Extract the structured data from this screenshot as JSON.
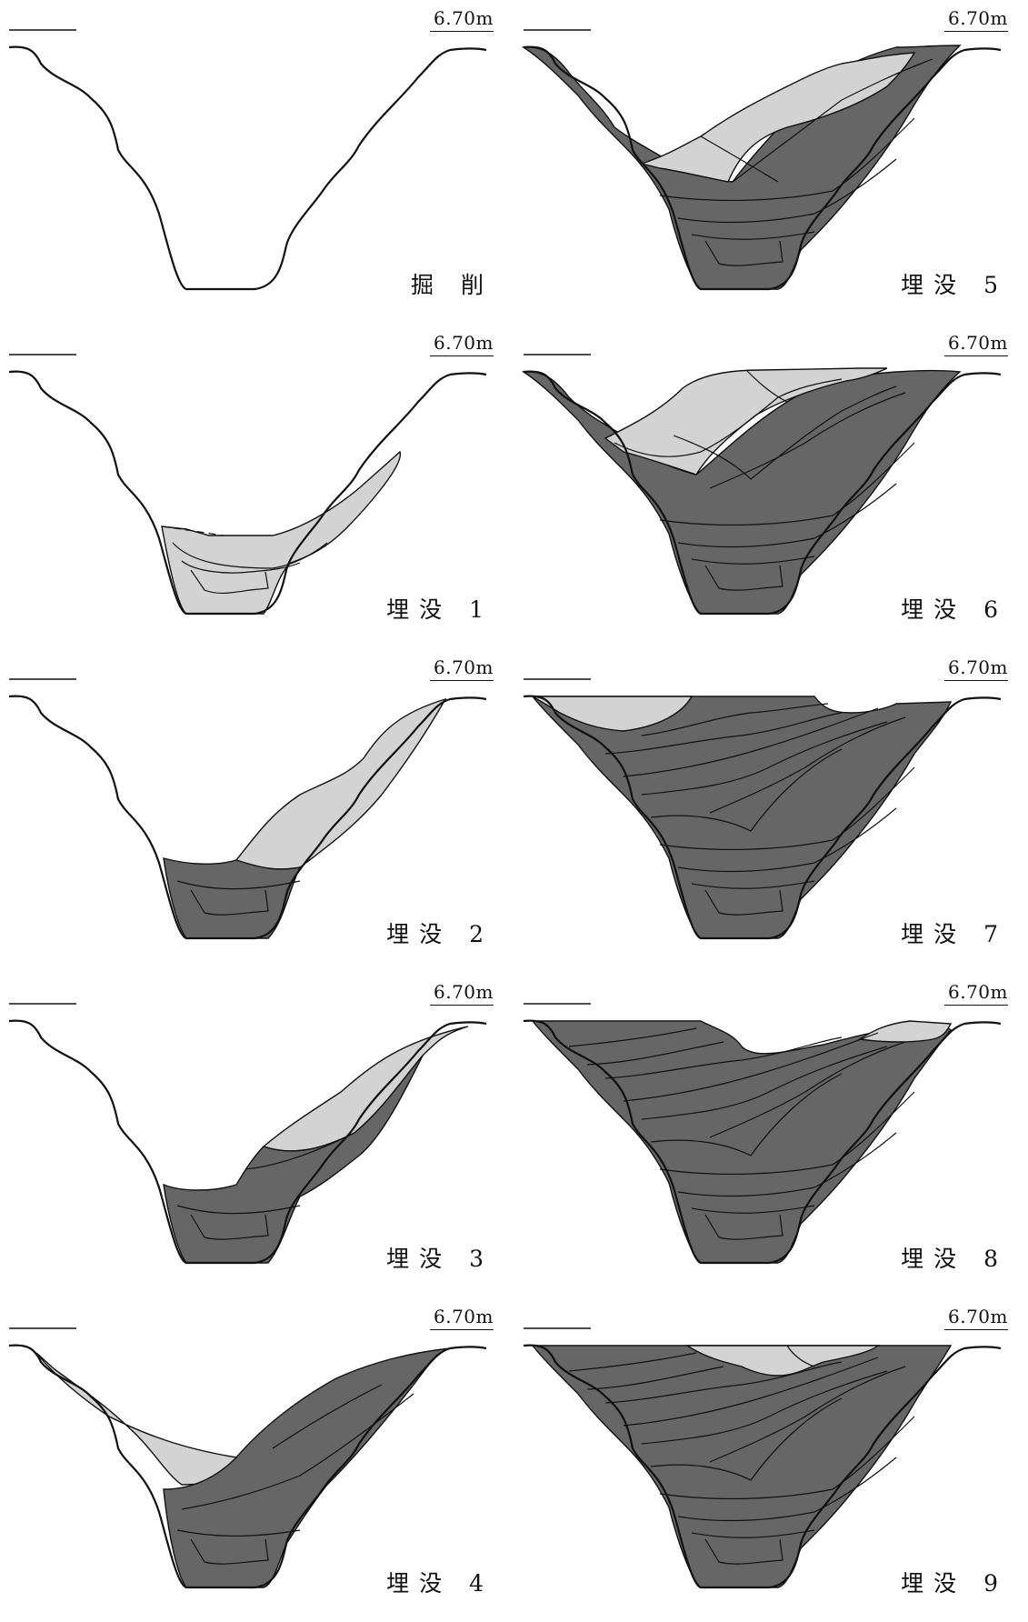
{
  "elevation_label": "6.70m",
  "colors": {
    "dark_fill": "#666666",
    "light_fill": "#d3d3d3",
    "line": "#111111"
  },
  "panels": [
    {
      "label": "掘 削",
      "stage": 0
    },
    {
      "label": "埋没 1",
      "stage": 1
    },
    {
      "label": "埋没 2",
      "stage": 2
    },
    {
      "label": "埋没 3",
      "stage": 3
    },
    {
      "label": "埋没 4",
      "stage": 4
    },
    {
      "label": "埋没 5",
      "stage": 5
    },
    {
      "label": "埋没 6",
      "stage": 6
    },
    {
      "label": "埋没 7",
      "stage": 7
    },
    {
      "label": "埋没 8",
      "stage": 8
    },
    {
      "label": "埋没 9",
      "stage": 9
    }
  ]
}
